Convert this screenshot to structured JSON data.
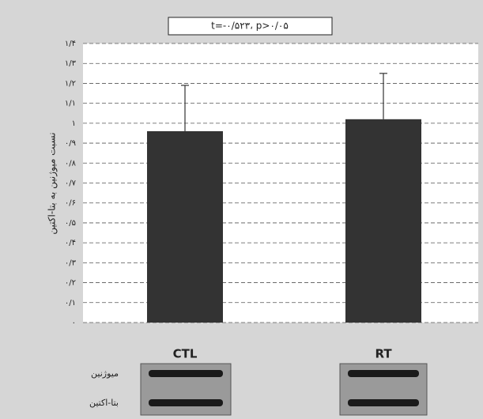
{
  "chart_data": {
    "type": "bar",
    "annotation": "t=-۰/۵۲۳، p>۰/۰۵",
    "ylabel": "نسبت میوژنین به بتا-اکتین",
    "categories": [
      "CTL",
      "RT"
    ],
    "values": [
      0.96,
      1.02
    ],
    "errors": [
      0.23,
      0.23
    ],
    "color": "#333333",
    "ylim": [
      0,
      1.4
    ],
    "yticks": [
      {
        "value": 0,
        "label": "۰"
      },
      {
        "value": 0.1,
        "label": "۰/۱"
      },
      {
        "value": 0.2,
        "label": "۰/۲"
      },
      {
        "value": 0.3,
        "label": "۰/۳"
      },
      {
        "value": 0.4,
        "label": "۰/۴"
      },
      {
        "value": 0.5,
        "label": "۰/۵"
      },
      {
        "value": 0.6,
        "label": "۰/۶"
      },
      {
        "value": 0.7,
        "label": "۰/۷"
      },
      {
        "value": 0.8,
        "label": "۰/۸"
      },
      {
        "value": 0.9,
        "label": "۰/۹"
      },
      {
        "value": 1,
        "label": "۱"
      },
      {
        "value": 1.1,
        "label": "۱/۱"
      },
      {
        "value": 1.2,
        "label": "۱/۲"
      },
      {
        "value": 1.3,
        "label": "۱/۳"
      },
      {
        "value": 1.4,
        "label": "۱/۴"
      }
    ],
    "grid": true,
    "blot_labels": [
      "میوژنین",
      "بتا-اکتین"
    ]
  }
}
